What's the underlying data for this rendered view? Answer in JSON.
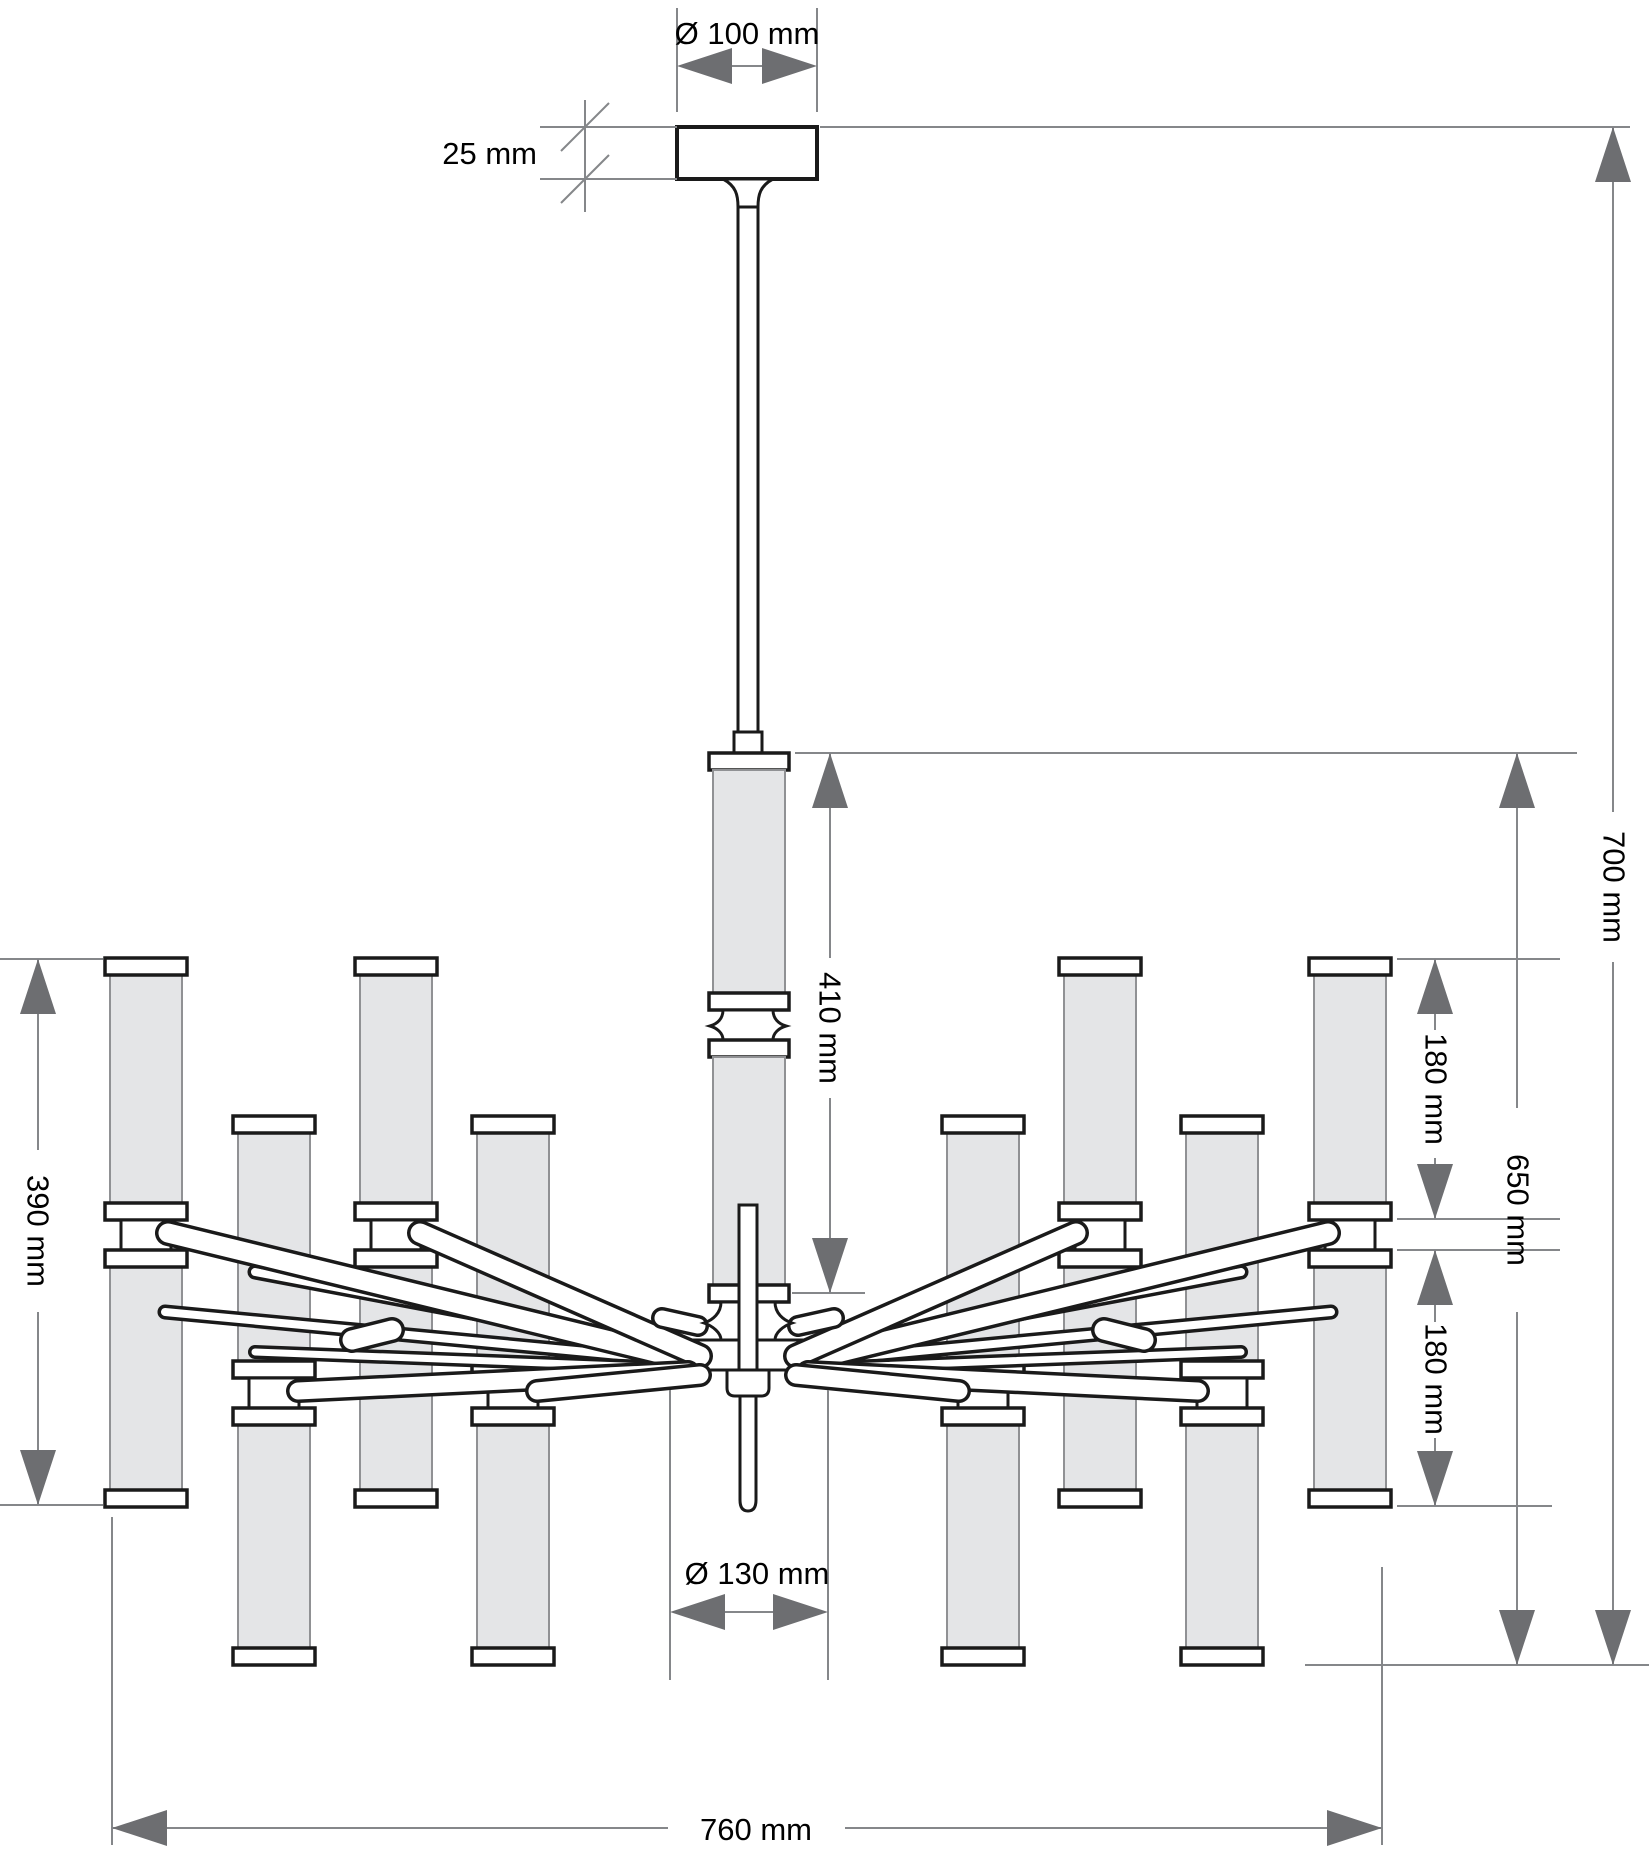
{
  "drawing": {
    "kind": "technical dimension drawing",
    "subject": "chandelier with tubular glass shades, radial arms and ceiling canopy"
  },
  "colors": {
    "background": "#ffffff",
    "outline": "#1a1a1a",
    "shade_fill": "#e4e5e7",
    "dimension_line": "#85878a",
    "dimension_arrow": "#6d6e71",
    "label_text": "#000000"
  },
  "dims": {
    "dia_canopy": {
      "label": "Ø 100 mm",
      "value_mm": 100,
      "orientation": "horizontal"
    },
    "canopy_height": {
      "label": "25 mm",
      "value_mm": 25,
      "orientation": "vertical"
    },
    "center_drop": {
      "label": "410 mm",
      "value_mm": 410,
      "orientation": "vertical"
    },
    "upper_shade": {
      "label": "180 mm",
      "value_mm": 180,
      "orientation": "vertical"
    },
    "lower_shade": {
      "label": "180 mm",
      "value_mm": 180,
      "orientation": "vertical"
    },
    "body_height": {
      "label": "650 mm",
      "value_mm": 650,
      "orientation": "vertical"
    },
    "total_height": {
      "label": "700 mm",
      "value_mm": 700,
      "orientation": "vertical"
    },
    "side_shade_height": {
      "label": "390 mm",
      "value_mm": 390,
      "orientation": "vertical"
    },
    "dia_hub": {
      "label": "Ø 130 mm",
      "value_mm": 130,
      "orientation": "horizontal"
    },
    "total_width": {
      "label": "760 mm",
      "value_mm": 760,
      "orientation": "horizontal"
    }
  }
}
